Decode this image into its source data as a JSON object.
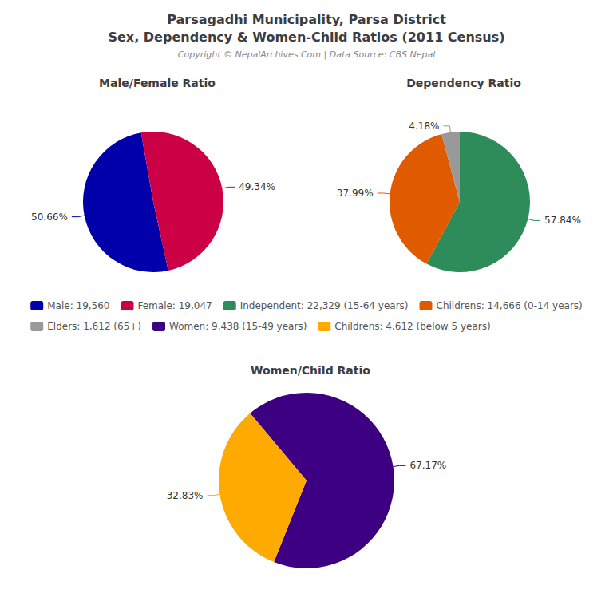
{
  "title": "Parsagadhi Municipality, Parsa District\nSex, Dependency & Women-Child Ratios (2011 Census)",
  "subtitle": "Copyright © NepalArchives.Com | Data Source: CBS Nepal",
  "legend": "center",
  "chart_data": [
    {
      "type": "pie",
      "title": "Male/Female Ratio",
      "categories": [
        "Male: 19,560",
        "Female: 19,047"
      ],
      "values": [
        50.66,
        49.34
      ],
      "value_labels": [
        "50.66%",
        "49.34%"
      ],
      "colors": [
        "#0000aa",
        "#cc0044"
      ],
      "data_labels": true
    },
    {
      "type": "pie",
      "title": "Dependency Ratio",
      "categories": [
        "Independent: 22,329 (15-64 years)",
        "Childrens: 14,666 (0-14 years)",
        "Elders: 1,612 (65+)"
      ],
      "values": [
        57.84,
        37.99,
        4.18
      ],
      "value_labels": [
        "57.84%",
        "37.99%",
        "4.18%"
      ],
      "colors": [
        "#2e8b5a",
        "#e05a00",
        "#999999"
      ],
      "data_labels": true
    },
    {
      "type": "pie",
      "title": "Women/Child Ratio",
      "categories": [
        "Women: 9,438 (15-49 years)",
        "Childrens: 4,612 (below 5 years)"
      ],
      "values": [
        67.17,
        32.83
      ],
      "value_labels": [
        "67.17%",
        "32.83%"
      ],
      "colors": [
        "#3d0082",
        "#ffaa00"
      ],
      "data_labels": true
    }
  ]
}
